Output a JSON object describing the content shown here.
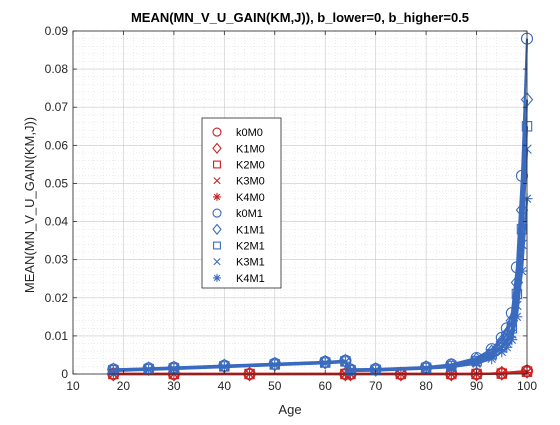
{
  "chart_data": {
    "type": "line",
    "title": "MEAN(MN_V_U_GAIN(KM,J)), b_lower=0, b_higher=0.5",
    "xlabel": "Age",
    "ylabel": "MEAN(MN_V_U_GAIN(KM,J))",
    "xlim": [
      10,
      100
    ],
    "ylim": [
      0,
      0.09
    ],
    "xticks": [
      10,
      20,
      30,
      40,
      50,
      60,
      70,
      80,
      90,
      100
    ],
    "yticks": [
      0,
      0.01,
      0.02,
      0.03,
      0.04,
      0.05,
      0.06,
      0.07,
      0.08,
      0.09
    ],
    "ytick_labels": [
      "0",
      "0.01",
      "0.02",
      "0.03",
      "0.04",
      "0.05",
      "0.06",
      "0.07",
      "0.08",
      "0.09"
    ],
    "grid": true,
    "minor_grid": true,
    "legend_position": "left-center",
    "colors": {
      "M0": "#cc2222",
      "M1": "#3a6bbf"
    },
    "series": [
      {
        "name": "k0M0",
        "marker": "circle",
        "color": "#cc2222",
        "x": [
          18,
          30,
          45,
          64,
          65,
          75,
          85,
          90,
          95,
          100
        ],
        "y": [
          0.0,
          0.0,
          0.0,
          0.0,
          0.0,
          0.0,
          0.0,
          0.0,
          0.0002,
          0.0008
        ]
      },
      {
        "name": "K1M0",
        "marker": "diamond",
        "color": "#cc2222",
        "x": [
          18,
          30,
          45,
          64,
          65,
          75,
          85,
          90,
          95,
          100
        ],
        "y": [
          0.0,
          0.0,
          0.0,
          0.0,
          0.0,
          0.0,
          0.0,
          0.0,
          0.0002,
          0.0007
        ]
      },
      {
        "name": "K2M0",
        "marker": "square",
        "color": "#cc2222",
        "x": [
          18,
          30,
          45,
          64,
          65,
          75,
          85,
          90,
          95,
          100
        ],
        "y": [
          0.0,
          0.0,
          0.0,
          0.0,
          0.0,
          0.0,
          0.0,
          0.0,
          0.0001,
          0.0006
        ]
      },
      {
        "name": "K3M0",
        "marker": "x",
        "color": "#cc2222",
        "x": [
          18,
          30,
          45,
          64,
          65,
          75,
          85,
          90,
          95,
          100
        ],
        "y": [
          0.0,
          0.0,
          0.0,
          0.0,
          0.0,
          0.0,
          0.0,
          0.0,
          0.0001,
          0.0005
        ]
      },
      {
        "name": "K4M0",
        "marker": "asterisk",
        "color": "#cc2222",
        "x": [
          18,
          30,
          45,
          64,
          65,
          75,
          85,
          90,
          95,
          100
        ],
        "y": [
          0.0,
          0.0,
          0.0,
          0.0,
          0.0,
          0.0,
          0.0,
          0.0,
          0.0001,
          0.0004
        ]
      },
      {
        "name": "k0M1",
        "marker": "circle",
        "color": "#3a6bbf",
        "x": [
          18,
          25,
          30,
          40,
          50,
          60,
          64,
          65,
          70,
          80,
          85,
          90,
          93,
          95,
          96,
          97,
          98,
          99,
          100
        ],
        "y": [
          0.0012,
          0.0015,
          0.0017,
          0.0022,
          0.0027,
          0.0032,
          0.0035,
          0.0012,
          0.0013,
          0.0018,
          0.0025,
          0.0042,
          0.0065,
          0.0095,
          0.012,
          0.016,
          0.028,
          0.052,
          0.088
        ]
      },
      {
        "name": "K1M1",
        "marker": "diamond",
        "color": "#3a6bbf",
        "x": [
          18,
          25,
          30,
          40,
          50,
          60,
          64,
          65,
          70,
          80,
          85,
          90,
          93,
          95,
          96,
          97,
          98,
          99,
          100
        ],
        "y": [
          0.0011,
          0.0014,
          0.0016,
          0.0021,
          0.0026,
          0.0031,
          0.0034,
          0.0011,
          0.0012,
          0.0017,
          0.0023,
          0.0038,
          0.0058,
          0.0085,
          0.0105,
          0.014,
          0.024,
          0.043,
          0.072
        ]
      },
      {
        "name": "K2M1",
        "marker": "square",
        "color": "#3a6bbf",
        "x": [
          18,
          25,
          30,
          40,
          50,
          60,
          64,
          65,
          70,
          80,
          85,
          90,
          93,
          95,
          96,
          97,
          98,
          99,
          100
        ],
        "y": [
          0.001,
          0.0013,
          0.0015,
          0.002,
          0.0025,
          0.003,
          0.0033,
          0.001,
          0.0011,
          0.0016,
          0.0021,
          0.0034,
          0.0052,
          0.0075,
          0.0092,
          0.012,
          0.021,
          0.038,
          0.065
        ]
      },
      {
        "name": "K3M1",
        "marker": "x",
        "color": "#3a6bbf",
        "x": [
          18,
          25,
          30,
          40,
          50,
          60,
          64,
          65,
          70,
          80,
          85,
          90,
          93,
          95,
          96,
          97,
          98,
          99,
          100
        ],
        "y": [
          0.0009,
          0.0012,
          0.0014,
          0.0019,
          0.0024,
          0.0029,
          0.0032,
          0.0009,
          0.001,
          0.0015,
          0.002,
          0.0031,
          0.0047,
          0.0068,
          0.0082,
          0.0105,
          0.018,
          0.034,
          0.059
        ]
      },
      {
        "name": "K4M1",
        "marker": "asterisk",
        "color": "#3a6bbf",
        "x": [
          18,
          25,
          30,
          40,
          50,
          60,
          64,
          65,
          70,
          80,
          85,
          90,
          93,
          95,
          96,
          97,
          98,
          99,
          100
        ],
        "y": [
          0.0008,
          0.0011,
          0.0013,
          0.0018,
          0.0023,
          0.0028,
          0.0031,
          0.0008,
          0.0009,
          0.0014,
          0.0018,
          0.0027,
          0.004,
          0.0058,
          0.007,
          0.009,
          0.015,
          0.027,
          0.046
        ]
      }
    ]
  }
}
